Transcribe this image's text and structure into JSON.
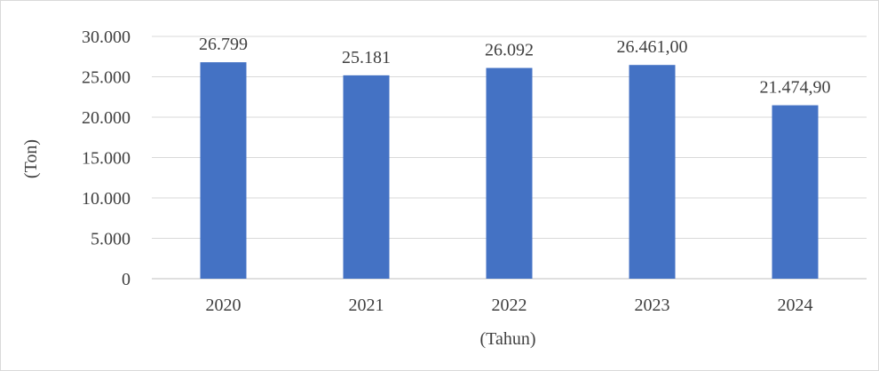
{
  "chart_data": {
    "type": "bar",
    "categories": [
      "2020",
      "2021",
      "2022",
      "2023",
      "2024"
    ],
    "values": [
      26799,
      25181,
      26092,
      26461,
      21474.9
    ],
    "data_labels": [
      "26.799",
      "25.181",
      "26.092",
      "26.461,00",
      "21.474,90"
    ],
    "y_ticks": [
      0,
      5000,
      10000,
      15000,
      20000,
      25000,
      30000
    ],
    "y_tick_labels": [
      "0",
      "5.000",
      "10.000",
      "15.000",
      "20.000",
      "25.000",
      "30.000"
    ],
    "ylim": [
      0,
      30000
    ],
    "xlabel": "(Tahun)",
    "ylabel": "(Ton)",
    "grid": true,
    "legend": "none",
    "colors": {
      "bar": "#4472c4",
      "grid": "#d9d9d9",
      "text": "#404040"
    }
  }
}
